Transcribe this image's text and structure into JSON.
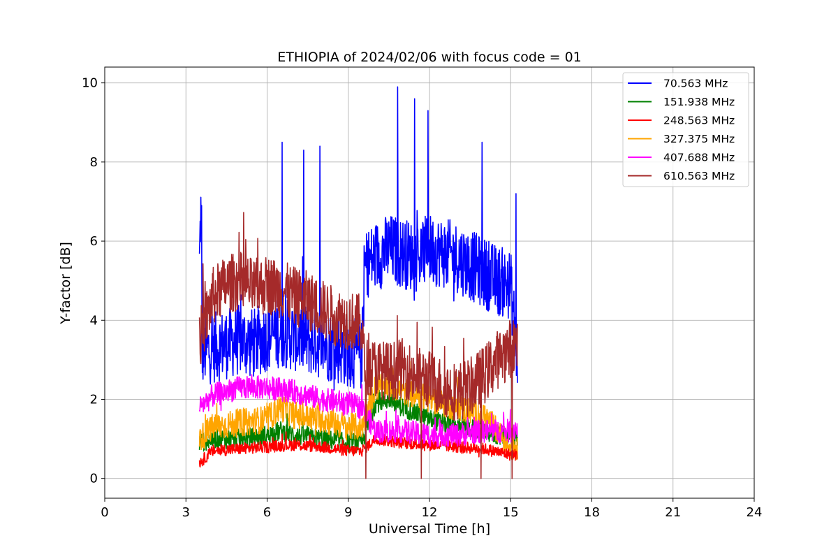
{
  "chart_data": {
    "type": "line",
    "title": "ETHIOPIA of 2024/02/06 with focus code = 01",
    "xlabel": "Universal Time [h]",
    "ylabel": "Y-factor [dB]",
    "xlim": [
      0,
      24
    ],
    "ylim": [
      -0.5,
      10.4
    ],
    "xticks": [
      0,
      3,
      6,
      9,
      12,
      15,
      18,
      21,
      24
    ],
    "yticks": [
      0,
      2,
      4,
      6,
      8,
      10
    ],
    "xtick_labels": [
      "0",
      "3",
      "6",
      "9",
      "12",
      "15",
      "18",
      "21",
      "24"
    ],
    "ytick_labels": [
      "0",
      "2",
      "4",
      "6",
      "8",
      "10"
    ],
    "grid": true,
    "legend_position": "top-right",
    "series": [
      {
        "name": "70.563 MHz",
        "color": "#0000ff",
        "x": [
          3.5,
          3.55,
          3.6,
          4.0,
          4.5,
          5.0,
          5.5,
          6.0,
          6.5,
          7.0,
          7.5,
          8.0,
          8.5,
          9.0,
          9.5,
          9.6,
          10.0,
          10.5,
          11.0,
          11.5,
          12.0,
          12.5,
          13.0,
          13.5,
          14.0,
          14.5,
          15.0,
          15.25
        ],
        "y": [
          5.4,
          6.9,
          3.2,
          3.3,
          3.4,
          3.5,
          3.4,
          3.6,
          3.7,
          3.6,
          3.5,
          3.4,
          3.3,
          3.2,
          3.1,
          5.4,
          5.6,
          5.8,
          5.7,
          5.6,
          5.8,
          5.7,
          5.6,
          5.4,
          5.2,
          5.0,
          4.9,
          3.0
        ],
        "peaks": [
          [
            3.58,
            6.9
          ],
          [
            6.55,
            8.5
          ],
          [
            7.35,
            8.3
          ],
          [
            7.95,
            8.4
          ],
          [
            10.82,
            9.9
          ],
          [
            11.45,
            9.6
          ],
          [
            11.95,
            9.3
          ],
          [
            13.95,
            8.5
          ],
          [
            15.2,
            7.2
          ]
        ]
      },
      {
        "name": "151.938 MHz",
        "color": "#008000",
        "x": [
          3.5,
          4.0,
          5.0,
          6.0,
          6.5,
          7.0,
          8.0,
          9.0,
          9.5,
          10.0,
          10.5,
          11.0,
          12.0,
          13.0,
          14.0,
          14.5,
          15.0,
          15.25
        ],
        "y": [
          0.9,
          1.0,
          1.0,
          1.1,
          1.2,
          1.1,
          1.0,
          0.9,
          0.9,
          1.9,
          2.0,
          1.8,
          1.5,
          1.3,
          1.2,
          1.1,
          1.1,
          1.0
        ]
      },
      {
        "name": "248.563 MHz",
        "color": "#ff0000",
        "x": [
          3.5,
          4.0,
          5.0,
          6.0,
          7.0,
          8.0,
          9.0,
          9.5,
          10.0,
          11.0,
          12.0,
          13.0,
          14.0,
          15.0,
          15.25
        ],
        "y": [
          0.4,
          0.7,
          0.75,
          0.8,
          0.85,
          0.8,
          0.7,
          0.7,
          1.0,
          0.9,
          0.85,
          0.8,
          0.75,
          0.6,
          0.6
        ]
      },
      {
        "name": "327.375 MHz",
        "color": "#ffa500",
        "x": [
          3.5,
          4.0,
          5.0,
          6.0,
          6.5,
          7.0,
          8.0,
          9.0,
          9.5,
          10.0,
          10.5,
          11.0,
          12.0,
          13.0,
          14.0,
          14.5,
          15.0,
          15.25
        ],
        "y": [
          1.0,
          1.3,
          1.4,
          1.5,
          1.8,
          1.6,
          1.5,
          1.3,
          1.3,
          2.3,
          2.4,
          2.2,
          2.0,
          1.8,
          1.6,
          1.2,
          0.8,
          0.8
        ]
      },
      {
        "name": "407.688 MHz",
        "color": "#ff00ff",
        "x": [
          3.5,
          4.0,
          5.0,
          6.0,
          7.0,
          8.0,
          9.0,
          9.5,
          10.0,
          11.0,
          12.0,
          13.0,
          14.0,
          15.0,
          15.25
        ],
        "y": [
          1.8,
          2.1,
          2.3,
          2.3,
          2.2,
          2.0,
          1.9,
          1.8,
          1.2,
          1.2,
          1.1,
          1.1,
          1.2,
          1.2,
          1.3
        ]
      },
      {
        "name": "610.563 MHz",
        "color": "#a52a2a",
        "x": [
          3.5,
          4.0,
          4.5,
          5.0,
          5.5,
          6.0,
          6.5,
          7.0,
          7.5,
          8.0,
          8.5,
          9.0,
          9.5,
          9.6,
          10.0,
          10.5,
          11.0,
          11.5,
          12.0,
          12.5,
          13.0,
          13.5,
          14.0,
          14.5,
          15.0,
          15.25
        ],
        "y": [
          3.5,
          4.6,
          4.9,
          5.0,
          4.8,
          4.9,
          4.8,
          4.6,
          4.5,
          4.3,
          4.1,
          4.0,
          3.9,
          2.8,
          2.8,
          2.7,
          2.8,
          2.6,
          2.5,
          2.3,
          2.2,
          2.3,
          2.6,
          3.0,
          3.3,
          3.4
        ],
        "dips": [
          [
            9.65,
            0.0
          ],
          [
            11.7,
            0.0
          ],
          [
            13.9,
            0.0
          ],
          [
            15.05,
            0.0
          ]
        ]
      }
    ]
  }
}
